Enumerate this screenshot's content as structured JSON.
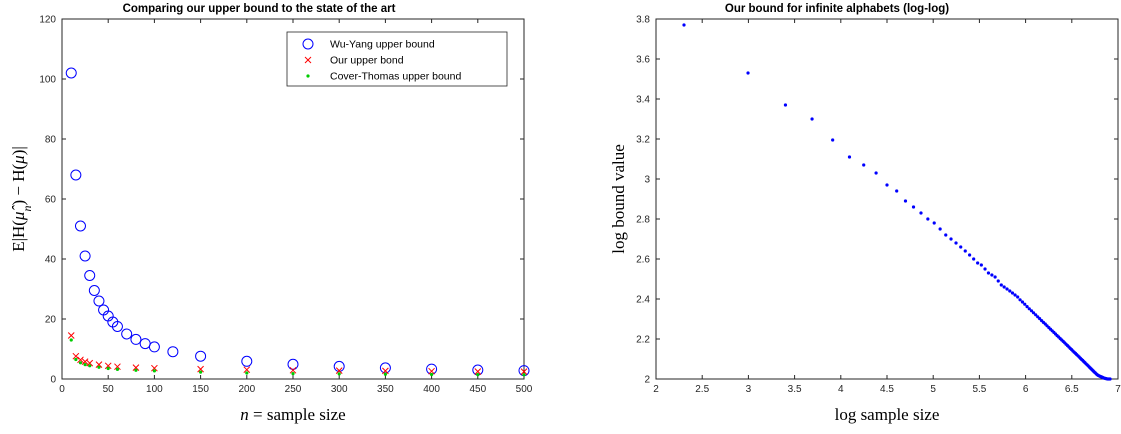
{
  "chart_data": [
    {
      "type": "scatter",
      "title": "Comparing our upper bound to the state of the art",
      "xlabel": "n = sample size",
      "ylabel": "E|H(μ̂n) − H(μ)|",
      "xlim": [
        0,
        500
      ],
      "ylim": [
        0,
        120
      ],
      "xticks": [
        0,
        50,
        100,
        150,
        200,
        250,
        300,
        350,
        400,
        450,
        500
      ],
      "yticks": [
        0,
        20,
        40,
        60,
        80,
        100,
        120
      ],
      "grid": false,
      "legend_position": "top-right",
      "series": [
        {
          "name": "Wu-Yang upper bound",
          "marker": "circle",
          "color": "#0000ff",
          "x": [
            10,
            15,
            20,
            25,
            30,
            35,
            40,
            45,
            50,
            55,
            60,
            70,
            80,
            90,
            100,
            120,
            150,
            200,
            250,
            300,
            350,
            400,
            450,
            500
          ],
          "y": [
            102,
            68,
            51,
            41,
            34.5,
            29.5,
            26,
            23,
            21,
            19,
            17.5,
            15,
            13.2,
            11.8,
            10.7,
            9.1,
            7.6,
            5.9,
            4.9,
            4.2,
            3.7,
            3.3,
            3.0,
            2.8
          ]
        },
        {
          "name": "Our upper bond",
          "marker": "x",
          "color": "#ff0000",
          "x": [
            10,
            15,
            20,
            25,
            30,
            40,
            50,
            60,
            80,
            100,
            150,
            200,
            250,
            300,
            350,
            400,
            450,
            500
          ],
          "y": [
            14.5,
            7.6,
            6.4,
            5.8,
            5.3,
            4.8,
            4.4,
            4.1,
            3.8,
            3.6,
            3.3,
            3.1,
            2.9,
            2.8,
            2.7,
            2.6,
            2.5,
            2.45
          ]
        },
        {
          "name": "Cover-Thomas upper bound",
          "marker": "dot",
          "color": "#00cc00",
          "x": [
            10,
            15,
            20,
            25,
            30,
            40,
            50,
            60,
            80,
            100,
            150,
            200,
            250,
            300,
            350,
            400,
            450,
            500
          ],
          "y": [
            13,
            6.5,
            5.4,
            4.8,
            4.4,
            3.9,
            3.5,
            3.2,
            2.9,
            2.7,
            2.3,
            2.0,
            1.8,
            1.7,
            1.6,
            1.5,
            1.45,
            1.4
          ]
        }
      ]
    },
    {
      "type": "scatter",
      "title": "Our bound for infinite alphabets (log-log)",
      "xlabel": "log sample size",
      "ylabel": "log bound value",
      "xlim": [
        2,
        7
      ],
      "ylim": [
        2,
        3.8
      ],
      "xticks": [
        2,
        2.5,
        3,
        3.5,
        4,
        4.5,
        5,
        5.5,
        6,
        6.5,
        7
      ],
      "yticks": [
        2,
        2.2,
        2.4,
        2.6,
        2.8,
        3,
        3.2,
        3.4,
        3.6,
        3.8
      ],
      "grid": false,
      "series": [
        {
          "marker": "dot",
          "color": "#0000ff",
          "x": [
            2.303,
            2.996,
            3.401,
            3.689,
            3.912,
            4.094,
            4.248,
            4.382,
            4.5,
            4.605,
            4.7,
            4.787,
            4.868,
            4.942,
            5.011,
            5.075,
            5.136,
            5.193,
            5.247,
            5.298,
            5.347,
            5.394,
            5.438,
            5.481,
            5.521,
            5.561,
            5.598,
            5.635,
            5.67,
            5.704,
            5.737,
            5.768,
            5.799,
            5.829,
            5.858,
            5.886,
            5.914,
            5.94,
            5.966,
            5.991,
            6.016,
            6.04,
            6.064,
            6.086,
            6.109,
            6.131,
            6.152,
            6.173,
            6.193,
            6.213,
            6.232,
            6.252,
            6.27,
            6.288,
            6.306,
            6.324,
            6.341,
            6.358,
            6.375,
            6.391,
            6.407,
            6.423,
            6.438,
            6.454,
            6.469,
            6.483,
            6.498,
            6.512,
            6.526,
            6.54,
            6.553,
            6.567,
            6.58,
            6.593,
            6.605,
            6.618,
            6.63,
            6.642,
            6.654,
            6.666,
            6.677,
            6.689,
            6.7,
            6.711,
            6.722,
            6.733,
            6.743,
            6.754,
            6.764,
            6.774,
            6.785,
            6.795,
            6.804,
            6.814,
            6.824,
            6.833,
            6.843,
            6.852,
            6.861,
            6.87,
            6.879,
            6.888,
            6.897,
            6.905,
            6.914
          ],
          "y": [
            3.77,
            3.53,
            3.37,
            3.3,
            3.195,
            3.11,
            3.07,
            3.03,
            2.97,
            2.94,
            2.89,
            2.86,
            2.83,
            2.8,
            2.78,
            2.75,
            2.72,
            2.7,
            2.68,
            2.66,
            2.64,
            2.62,
            2.6,
            2.58,
            2.57,
            2.55,
            2.53,
            2.52,
            2.51,
            2.49,
            2.47,
            2.46,
            2.45,
            2.44,
            2.43,
            2.42,
            2.41,
            2.396,
            2.385,
            2.374,
            2.362,
            2.351,
            2.341,
            2.331,
            2.321,
            2.311,
            2.302,
            2.292,
            2.283,
            2.275,
            2.266,
            2.257,
            2.249,
            2.241,
            2.233,
            2.225,
            2.217,
            2.21,
            2.202,
            2.195,
            2.188,
            2.181,
            2.174,
            2.167,
            2.16,
            2.153,
            2.147,
            2.14,
            2.134,
            2.128,
            2.122,
            2.116,
            2.11,
            2.104,
            2.098,
            2.093,
            2.087,
            2.082,
            2.076,
            2.071,
            2.066,
            2.06,
            2.055,
            2.05,
            2.045,
            2.04,
            2.035,
            2.031,
            2.026,
            2.022,
            2.018,
            2.016,
            2.014,
            2.012,
            2.01,
            2.008,
            2.006,
            2.004,
            2.003,
            2.002,
            2.001,
            2.0,
            2.0,
            2.0,
            2.0
          ]
        }
      ]
    }
  ]
}
